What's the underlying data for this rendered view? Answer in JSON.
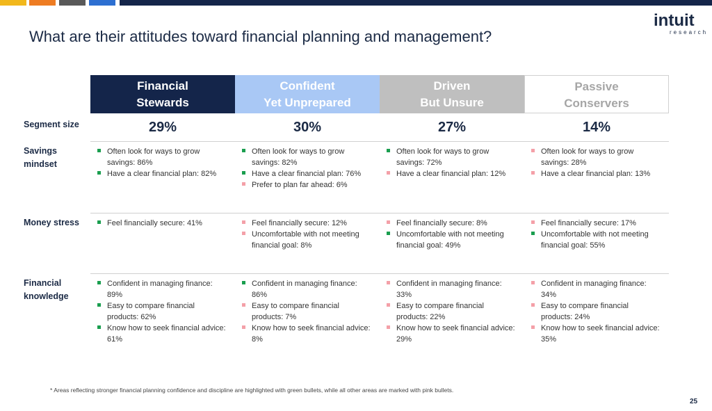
{
  "header": {
    "title": "What are their attitudes toward financial planning and management?",
    "logo": "intuit",
    "logo_sub": "research"
  },
  "table": {
    "columns": [
      [
        "Financial",
        "Stewards"
      ],
      [
        "Confident",
        "Yet Unprepared"
      ],
      [
        "Driven",
        "But Unsure"
      ],
      [
        "Passive",
        "Conservers"
      ]
    ],
    "segment_size": {
      "label": "Segment size",
      "cells": [
        "29%",
        "30%",
        "27%",
        "14%"
      ]
    },
    "rows": [
      {
        "label": "Savings mindset",
        "cells": [
          [
            {
              "text": "Often look for ways to grow savings: 86%",
              "bullet": "green"
            },
            {
              "text": "Have a clear financial plan: 82%",
              "bullet": "green"
            }
          ],
          [
            {
              "text": "Often look for ways to grow savings: 82%",
              "bullet": "green"
            },
            {
              "text": "Have a clear financial plan: 76%",
              "bullet": "green"
            },
            {
              "text": "Prefer to plan far ahead: 6%",
              "bullet": "pink"
            }
          ],
          [
            {
              "text": "Often look for ways to grow savings: 72%",
              "bullet": "green"
            },
            {
              "text": "Have a clear financial plan: 12%",
              "bullet": "pink"
            }
          ],
          [
            {
              "text": "Often look for ways to grow savings: 28%",
              "bullet": "pink"
            },
            {
              "text": "Have a clear financial plan: 13%",
              "bullet": "pink"
            }
          ]
        ]
      },
      {
        "label": "Money stress",
        "cells": [
          [
            {
              "text": "Feel financially secure: 41%",
              "bullet": "green"
            }
          ],
          [
            {
              "text": "Feel financially secure: 12%",
              "bullet": "pink"
            },
            {
              "text": "Uncomfortable with not meeting financial goal: 8%",
              "bullet": "pink"
            }
          ],
          [
            {
              "text": "Feel financially secure: 8%",
              "bullet": "pink"
            },
            {
              "text": "Uncomfortable with not meeting financial goal: 49%",
              "bullet": "green"
            }
          ],
          [
            {
              "text": "Feel financially secure: 17%",
              "bullet": "pink"
            },
            {
              "text": "Uncomfortable with not meeting financial goal: 55%",
              "bullet": "green"
            }
          ]
        ]
      },
      {
        "label": "Financial knowledge",
        "cells": [
          [
            {
              "text": "Confident in managing finance: 89%",
              "bullet": "green"
            },
            {
              "text": "Easy to compare financial products: 62%",
              "bullet": "green"
            },
            {
              "text": "Know how to seek financial advice: 61%",
              "bullet": "green"
            }
          ],
          [
            {
              "text": "Confident in managing finance: 86%",
              "bullet": "green"
            },
            {
              "text": "Easy to compare financial products: 7%",
              "bullet": "pink"
            },
            {
              "text": "Know how to seek financial advice: 8%",
              "bullet": "pink"
            }
          ],
          [
            {
              "text": "Confident in managing finance: 33%",
              "bullet": "pink"
            },
            {
              "text": "Easy to compare financial products: 22%",
              "bullet": "pink"
            },
            {
              "text": "Know how to seek financial advice: 29%",
              "bullet": "pink"
            }
          ],
          [
            {
              "text": "Confident in managing finance: 34%",
              "bullet": "pink"
            },
            {
              "text": "Easy to compare financial products: 24%",
              "bullet": "pink"
            },
            {
              "text": "Know how to seek financial advice: 35%",
              "bullet": "pink"
            }
          ]
        ]
      }
    ]
  },
  "footnote": "* Areas reflecting stronger financial planning confidence and discipline are highlighted with green bullets, while all other areas are marked with pink bullets.",
  "page_number": "25"
}
